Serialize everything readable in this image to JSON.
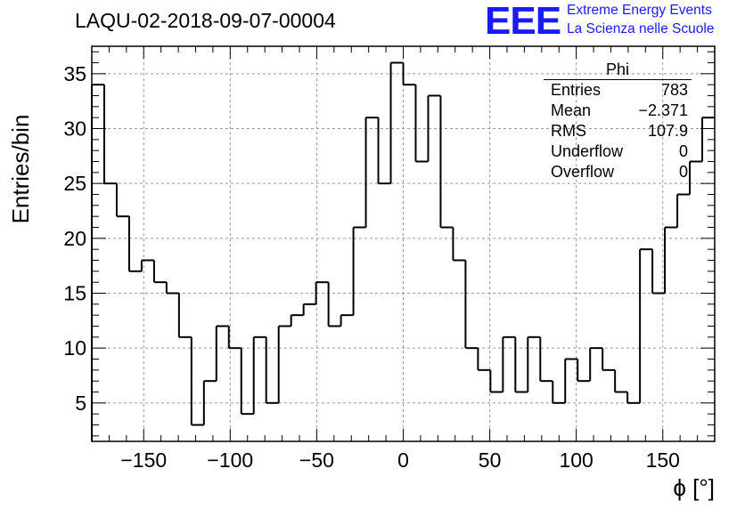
{
  "header": {
    "title": "LAQU-02-2018-09-07-00004",
    "logo_text": "EEE",
    "logo_line1": "Extreme Energy Events",
    "logo_line2": "La Scienza nelle Scuole"
  },
  "stats_box": {
    "title": "Phi",
    "rows": [
      {
        "label": "Entries",
        "value": "783"
      },
      {
        "label": "Mean",
        "value": "−2.371"
      },
      {
        "label": "RMS",
        "value": "107.9"
      },
      {
        "label": "Underflow",
        "value": "0"
      },
      {
        "label": "Overflow",
        "value": "0"
      }
    ]
  },
  "colors": {
    "line": "#000000",
    "grid": "#999999",
    "logo": "#1a1aff"
  },
  "chart_data": {
    "type": "bar",
    "style": "step-histogram",
    "xlabel": "ϕ [°]",
    "ylabel": "Entries/bin",
    "xlim": [
      -180,
      180
    ],
    "ylim": [
      1.5,
      37.5
    ],
    "bin_width": 7.2,
    "bin_edges_start": -180,
    "values": [
      34,
      25,
      22,
      17,
      18,
      16,
      15,
      11,
      3,
      7,
      12,
      10,
      4,
      11,
      5,
      12,
      13,
      14,
      16,
      12,
      13,
      21,
      31,
      25,
      36,
      34,
      27,
      33,
      21,
      18,
      10,
      8,
      6,
      11,
      6,
      11,
      7,
      5,
      9,
      7,
      10,
      8,
      6,
      5,
      19,
      15,
      21,
      24,
      27,
      31
    ],
    "xticks": [
      -150,
      -100,
      -50,
      0,
      50,
      100,
      150
    ],
    "xtick_labels": [
      "−150",
      "−100",
      "−50",
      "0",
      "50",
      "100",
      "150"
    ],
    "yticks": [
      5,
      10,
      15,
      20,
      25,
      30,
      35
    ],
    "ytick_labels": [
      "5",
      "10",
      "15",
      "20",
      "25",
      "30",
      "35"
    ],
    "grid": true
  }
}
